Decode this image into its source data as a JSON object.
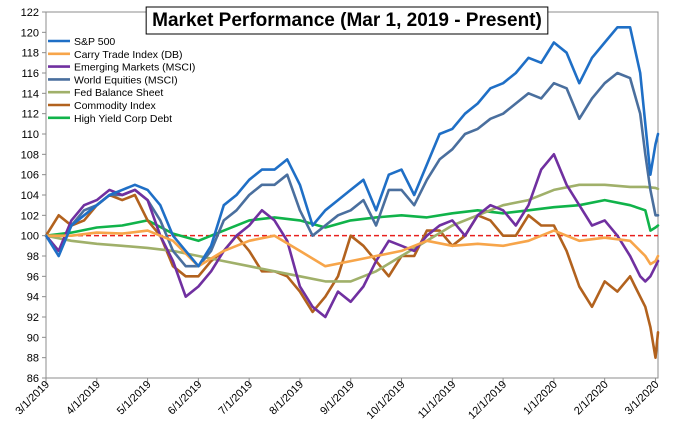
{
  "chart_data": {
    "type": "line",
    "title": "Market Performance (Mar 1, 2019 - Present)",
    "xlabel": "",
    "ylabel": "",
    "ylim": [
      86,
      122
    ],
    "yticks": [
      86,
      88,
      90,
      92,
      94,
      96,
      98,
      100,
      102,
      104,
      106,
      108,
      110,
      112,
      114,
      116,
      118,
      120,
      122
    ],
    "x_tick_labels": [
      "3/1/2019",
      "4/1/2019",
      "5/1/2019",
      "6/1/2019",
      "7/1/2019",
      "8/1/2019",
      "9/1/2019",
      "10/1/2019",
      "11/1/2019",
      "12/1/2019",
      "1/1/2020",
      "2/1/2020",
      "3/1/2020"
    ],
    "x_tick_month_index": [
      0,
      1,
      2,
      3,
      4,
      5,
      6,
      7,
      8,
      9,
      10,
      11,
      12
    ],
    "reference_line": {
      "y": 100,
      "color": "#e8201e",
      "style": "dashed"
    },
    "grid": false,
    "legend_position": "top-left",
    "series": [
      {
        "name": "S&P 500",
        "color": "#1f6fc6",
        "x": [
          0,
          0.25,
          0.5,
          0.75,
          1,
          1.25,
          1.5,
          1.75,
          2,
          2.25,
          2.5,
          2.75,
          3,
          3.25,
          3.5,
          3.75,
          4,
          4.25,
          4.5,
          4.75,
          5,
          5.25,
          5.5,
          5.75,
          6,
          6.25,
          6.5,
          6.75,
          7,
          7.25,
          7.5,
          7.75,
          8,
          8.25,
          8.5,
          8.75,
          9,
          9.25,
          9.5,
          9.75,
          10,
          10.25,
          10.5,
          10.75,
          11,
          11.25,
          11.5,
          11.7,
          11.8,
          11.9,
          12,
          12.05
        ],
        "values": [
          100,
          98,
          101,
          102,
          103,
          104,
          104.5,
          105,
          104.5,
          103,
          100,
          98.5,
          97,
          99,
          103,
          104,
          105.5,
          106.5,
          106.5,
          107.5,
          105,
          101,
          102.5,
          103.5,
          104.5,
          105.5,
          102.5,
          106,
          106.5,
          104,
          107,
          110,
          110.5,
          112,
          113,
          114.5,
          115,
          116,
          117.5,
          117,
          119,
          118,
          115,
          117.5,
          119,
          120.5,
          120.5,
          116,
          111,
          106,
          109,
          110
        ]
      },
      {
        "name": "Carry Trade Index (DB)",
        "color": "#f7a54a",
        "x": [
          0,
          0.5,
          1,
          1.5,
          2,
          2.5,
          3,
          3.5,
          4,
          4.5,
          5,
          5.5,
          6,
          6.5,
          7,
          7.5,
          8,
          8.5,
          9,
          9.5,
          10,
          10.5,
          11,
          11.5,
          11.7,
          11.8,
          11.9,
          12,
          12.05
        ],
        "values": [
          100,
          100,
          100.3,
          100.2,
          100.5,
          99.5,
          97,
          98.5,
          99.5,
          100,
          98.5,
          97,
          97.5,
          98,
          98.5,
          99.5,
          99,
          99.2,
          99,
          99.5,
          100.5,
          99.5,
          99.8,
          99.5,
          98.5,
          98,
          97.2,
          97.5,
          98
        ]
      },
      {
        "name": "Emerging Markets (MSCI)",
        "color": "#7030a0",
        "x": [
          0,
          0.25,
          0.5,
          0.75,
          1,
          1.25,
          1.5,
          1.75,
          2,
          2.25,
          2.5,
          2.75,
          3,
          3.25,
          3.5,
          3.75,
          4,
          4.25,
          4.5,
          4.75,
          5,
          5.25,
          5.5,
          5.75,
          6,
          6.25,
          6.5,
          6.75,
          7,
          7.25,
          7.5,
          7.75,
          8,
          8.25,
          8.5,
          8.75,
          9,
          9.25,
          9.5,
          9.75,
          10,
          10.25,
          10.5,
          10.75,
          11,
          11.25,
          11.5,
          11.7,
          11.8,
          11.9,
          12,
          12.05
        ],
        "values": [
          100,
          98.5,
          101.5,
          103,
          103.5,
          104.5,
          104,
          104.5,
          103.5,
          100,
          97.5,
          94,
          95,
          96.5,
          98.5,
          100,
          101,
          102.5,
          101.5,
          99.5,
          95,
          93,
          92,
          94.5,
          93.5,
          95,
          97.5,
          99.5,
          99,
          98.5,
          100,
          101,
          101.5,
          100,
          102,
          103,
          102.5,
          101,
          103,
          106.5,
          108,
          105,
          103,
          101,
          101.5,
          100,
          98,
          96,
          95.5,
          96,
          97,
          97.5
        ]
      },
      {
        "name": "World Equities (MSCI)",
        "color": "#4a6f9e",
        "x": [
          0,
          0.25,
          0.5,
          0.75,
          1,
          1.25,
          1.5,
          1.75,
          2,
          2.25,
          2.5,
          2.75,
          3,
          3.25,
          3.5,
          3.75,
          4,
          4.25,
          4.5,
          4.75,
          5,
          5.25,
          5.5,
          5.75,
          6,
          6.25,
          6.5,
          6.75,
          7,
          7.25,
          7.5,
          7.75,
          8,
          8.25,
          8.5,
          8.75,
          9,
          9.25,
          9.5,
          9.75,
          10,
          10.25,
          10.5,
          10.75,
          11,
          11.25,
          11.5,
          11.7,
          11.8,
          11.9,
          12,
          12.05
        ],
        "values": [
          100,
          98.5,
          101,
          102.5,
          103,
          104,
          104,
          104.5,
          103.5,
          101.5,
          98.5,
          97,
          97,
          98.5,
          101.5,
          102.5,
          104,
          105,
          105,
          106,
          102.5,
          100,
          101,
          102,
          102.5,
          103.5,
          101,
          104.5,
          104.5,
          103,
          105.5,
          107.5,
          108.5,
          110,
          110.5,
          111.5,
          112,
          113,
          114,
          113.5,
          115,
          114.5,
          111.5,
          113.5,
          115,
          116,
          115.5,
          112,
          108,
          104.5,
          102,
          102
        ]
      },
      {
        "name": "Fed Balance Sheet",
        "color": "#a0b06a",
        "x": [
          0,
          0.5,
          1,
          1.5,
          2,
          2.5,
          3,
          3.5,
          4,
          4.5,
          5,
          5.5,
          6,
          6.5,
          7,
          7.5,
          8,
          8.5,
          9,
          9.5,
          10,
          10.5,
          11,
          11.5,
          11.8,
          12,
          12.05
        ],
        "values": [
          100,
          99.5,
          99.2,
          99,
          98.8,
          98.5,
          98,
          97.5,
          97,
          96.5,
          96,
          95.5,
          95.5,
          96.5,
          98,
          99.5,
          101,
          102,
          103,
          103.5,
          104.5,
          105,
          105,
          104.8,
          104.8,
          104.7,
          104.6
        ]
      },
      {
        "name": "Commodity Index",
        "color": "#b2621e",
        "x": [
          0,
          0.25,
          0.5,
          0.75,
          1,
          1.25,
          1.5,
          1.75,
          2,
          2.25,
          2.5,
          2.75,
          3,
          3.25,
          3.5,
          3.75,
          4,
          4.25,
          4.5,
          4.75,
          5,
          5.25,
          5.5,
          5.75,
          6,
          6.25,
          6.5,
          6.75,
          7,
          7.25,
          7.5,
          7.75,
          8,
          8.25,
          8.5,
          8.75,
          9,
          9.25,
          9.5,
          9.75,
          10,
          10.25,
          10.5,
          10.75,
          11,
          11.25,
          11.5,
          11.6,
          11.7,
          11.8,
          11.9,
          12,
          12.05
        ],
        "values": [
          100,
          102,
          101,
          101.5,
          103,
          104,
          103.5,
          104,
          101.5,
          100,
          97,
          96,
          96,
          97.5,
          98.5,
          100,
          98.5,
          96.5,
          96.5,
          96,
          94.5,
          92.5,
          94,
          96,
          100,
          99,
          97.5,
          96,
          98,
          98,
          100.5,
          100.5,
          99,
          100,
          102,
          101.5,
          100,
          100,
          102,
          101,
          101,
          98.5,
          95,
          93,
          95.5,
          94.5,
          96,
          95,
          94,
          93,
          91,
          88,
          90.5
        ]
      },
      {
        "name": "High Yield Corp Debt",
        "color": "#10b34a",
        "x": [
          0,
          0.5,
          1,
          1.5,
          2,
          2.5,
          3,
          3.5,
          4,
          4.5,
          5,
          5.5,
          6,
          6.5,
          7,
          7.5,
          8,
          8.5,
          9,
          9.5,
          10,
          10.5,
          11,
          11.5,
          11.8,
          11.9,
          12,
          12.05
        ],
        "values": [
          100,
          100.3,
          100.8,
          101,
          101.5,
          100.2,
          99.5,
          100.5,
          101.5,
          101.8,
          101.5,
          100.8,
          101.5,
          101.8,
          102,
          101.8,
          102.2,
          102.5,
          102.2,
          102.5,
          102.8,
          103,
          103.5,
          103,
          102.5,
          100.5,
          100.8,
          101
        ]
      }
    ]
  }
}
